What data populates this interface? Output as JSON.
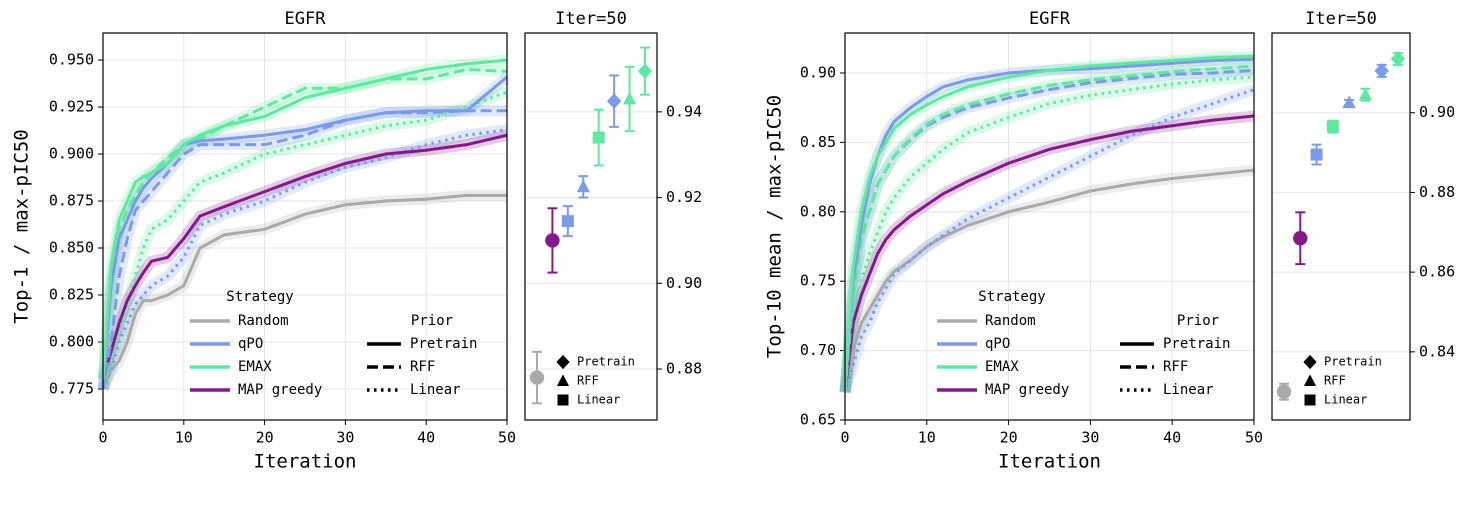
{
  "chart_data": [
    {
      "type": "line",
      "title": "EGFR",
      "x_label": "Iteration",
      "y_label": "Top-1 / max-pIC50",
      "x": [
        0,
        1,
        2,
        3,
        4,
        5,
        6,
        8,
        10,
        12,
        15,
        20,
        25,
        30,
        35,
        40,
        45,
        50
      ],
      "xlim": [
        0,
        50
      ],
      "xticks": [
        0,
        10,
        20,
        30,
        40,
        50
      ],
      "ylim": [
        0.7585,
        0.9644
      ],
      "yticks": [
        0.775,
        {
          "value": 0.8,
          "label": "0.800"
        },
        0.825,
        {
          "value": 0.85,
          "label": "0.850"
        },
        0.875,
        {
          "value": 0.9,
          "label": "0.900"
        },
        0.925,
        {
          "value": 0.95,
          "label": "0.950"
        }
      ],
      "grid": true,
      "legend": {
        "title": "Strategy",
        "entries": [
          {
            "label": "Random",
            "color": "#aaaaaa"
          },
          {
            "label": "qPO",
            "color": "#7b9ae8"
          },
          {
            "label": "EMAX",
            "color": "#5fe8a0"
          },
          {
            "label": "MAP greedy",
            "color": "#86198a"
          }
        ]
      },
      "legend2": {
        "title": "Prior",
        "entries": [
          {
            "label": "Pretrain",
            "dash": "solid"
          },
          {
            "label": "RFF",
            "dash": "dashed"
          },
          {
            "label": "Linear",
            "dash": "dotted"
          }
        ]
      },
      "series": [
        {
          "color": "#aaaaaa",
          "dash": "solid",
          "values": [
            0.775,
            0.785,
            0.79,
            0.8,
            0.815,
            0.822,
            0.822,
            0.825,
            0.83,
            0.85,
            0.857,
            0.86,
            0.868,
            0.873,
            0.875,
            0.876,
            0.878,
            0.878
          ]
        },
        {
          "color": "#7b9ae8",
          "dash": "dotted",
          "values": [
            0.775,
            0.785,
            0.8,
            0.81,
            0.82,
            0.825,
            0.83,
            0.835,
            0.845,
            0.862,
            0.868,
            0.875,
            0.885,
            0.893,
            0.898,
            0.905,
            0.91,
            0.913
          ]
        },
        {
          "color": "#5fe8a0",
          "dash": "dotted",
          "values": [
            0.775,
            0.79,
            0.805,
            0.82,
            0.835,
            0.85,
            0.86,
            0.865,
            0.875,
            0.885,
            0.89,
            0.9,
            0.905,
            0.91,
            0.915,
            0.918,
            0.925,
            0.933
          ]
        },
        {
          "color": "#86198a",
          "dash": "solid",
          "values": [
            0.78,
            0.795,
            0.81,
            0.822,
            0.83,
            0.837,
            0.843,
            0.845,
            0.855,
            0.867,
            0.872,
            0.88,
            0.888,
            0.895,
            0.9,
            0.902,
            0.905,
            0.91
          ]
        },
        {
          "color": "#7b9ae8",
          "dash": "dashed",
          "values": [
            0.775,
            0.8,
            0.835,
            0.855,
            0.87,
            0.875,
            0.88,
            0.89,
            0.9,
            0.905,
            0.905,
            0.905,
            0.91,
            0.918,
            0.922,
            0.922,
            0.923,
            0.923
          ]
        },
        {
          "color": "#5fe8a0",
          "dash": "dashed",
          "values": [
            0.78,
            0.83,
            0.86,
            0.87,
            0.878,
            0.885,
            0.89,
            0.898,
            0.905,
            0.908,
            0.915,
            0.925,
            0.935,
            0.935,
            0.94,
            0.94,
            0.945,
            0.944
          ]
        },
        {
          "color": "#7b9ae8",
          "dash": "solid",
          "values": [
            0.775,
            0.83,
            0.855,
            0.865,
            0.875,
            0.882,
            0.887,
            0.895,
            0.905,
            0.907,
            0.908,
            0.91,
            0.913,
            0.918,
            0.922,
            0.923,
            0.923,
            0.941
          ]
        },
        {
          "color": "#5fe8a0",
          "dash": "solid",
          "values": [
            0.78,
            0.84,
            0.865,
            0.875,
            0.885,
            0.888,
            0.89,
            0.895,
            0.905,
            0.91,
            0.915,
            0.92,
            0.93,
            0.935,
            0.94,
            0.945,
            0.948,
            0.95
          ]
        }
      ]
    },
    {
      "type": "errorbar",
      "title": "Iter=50",
      "ylim": [
        0.8681,
        0.9584
      ],
      "yticks": [
        0.88,
        {
          "value": 0.9,
          "label": "0.90"
        },
        0.92,
        0.94
      ],
      "grid": true,
      "points": [
        {
          "color": "#aaaaaa",
          "marker": "circle",
          "value": 0.878,
          "error": 0.006
        },
        {
          "color": "#86198a",
          "marker": "circle",
          "value": 0.91,
          "error": 0.0075
        },
        {
          "color": "#7b9ae8",
          "marker": "square",
          "value": 0.9145,
          "error": 0.0035
        },
        {
          "color": "#7b9ae8",
          "marker": "triangle",
          "value": 0.9225,
          "error": 0.0025
        },
        {
          "color": "#5fe8a0",
          "marker": "square",
          "value": 0.934,
          "error": 0.0065
        },
        {
          "color": "#7b9ae8",
          "marker": "diamond",
          "value": 0.9425,
          "error": 0.006
        },
        {
          "color": "#5fe8a0",
          "marker": "triangle",
          "value": 0.943,
          "error": 0.0075
        },
        {
          "color": "#5fe8a0",
          "marker": "diamond",
          "value": 0.9495,
          "error": 0.0055
        }
      ],
      "legend": {
        "entries": [
          {
            "label": "Pretrain",
            "marker": "diamond"
          },
          {
            "label": "RFF",
            "marker": "triangle"
          },
          {
            "label": "Linear",
            "marker": "square"
          }
        ]
      }
    },
    {
      "type": "line",
      "title": "EGFR",
      "x_label": "Iteration",
      "y_label": "Top-10 mean / max-pIC50",
      "x": [
        0,
        1,
        2,
        3,
        4,
        5,
        6,
        8,
        10,
        12,
        15,
        20,
        25,
        30,
        35,
        40,
        45,
        50
      ],
      "xlim": [
        0,
        50
      ],
      "xticks": [
        0,
        10,
        20,
        30,
        40,
        50
      ],
      "ylim": [
        0.65,
        0.9288
      ],
      "yticks": [
        0.65,
        {
          "value": 0.7,
          "label": "0.70"
        },
        0.75,
        {
          "value": 0.8,
          "label": "0.80"
        },
        0.85,
        {
          "value": 0.9,
          "label": "0.90"
        }
      ],
      "grid": true,
      "legend": {
        "title": "Strategy",
        "entries": [
          {
            "label": "Random",
            "color": "#aaaaaa"
          },
          {
            "label": "qPO",
            "color": "#7b9ae8"
          },
          {
            "label": "EMAX",
            "color": "#5fe8a0"
          },
          {
            "label": "MAP greedy",
            "color": "#86198a"
          }
        ]
      },
      "legend2": {
        "title": "Prior",
        "entries": [
          {
            "label": "Pretrain",
            "dash": "solid"
          },
          {
            "label": "RFF",
            "dash": "dashed"
          },
          {
            "label": "Linear",
            "dash": "dotted"
          }
        ]
      },
      "series": [
        {
          "color": "#aaaaaa",
          "dash": "solid",
          "values": [
            0.67,
            0.7,
            0.72,
            0.73,
            0.74,
            0.75,
            0.757,
            0.765,
            0.775,
            0.782,
            0.79,
            0.8,
            0.807,
            0.815,
            0.82,
            0.824,
            0.827,
            0.83
          ]
        },
        {
          "color": "#7b9ae8",
          "dash": "dotted",
          "values": [
            0.67,
            0.69,
            0.71,
            0.72,
            0.735,
            0.745,
            0.755,
            0.765,
            0.775,
            0.783,
            0.795,
            0.81,
            0.825,
            0.84,
            0.855,
            0.868,
            0.878,
            0.888
          ]
        },
        {
          "color": "#5fe8a0",
          "dash": "dotted",
          "values": [
            0.67,
            0.72,
            0.75,
            0.77,
            0.785,
            0.8,
            0.81,
            0.825,
            0.835,
            0.845,
            0.857,
            0.868,
            0.878,
            0.884,
            0.888,
            0.892,
            0.895,
            0.897
          ]
        },
        {
          "color": "#86198a",
          "dash": "solid",
          "values": [
            0.67,
            0.72,
            0.74,
            0.755,
            0.77,
            0.78,
            0.787,
            0.797,
            0.805,
            0.813,
            0.822,
            0.835,
            0.845,
            0.852,
            0.858,
            0.862,
            0.866,
            0.869
          ]
        },
        {
          "color": "#7b9ae8",
          "dash": "dashed",
          "values": [
            0.67,
            0.74,
            0.78,
            0.8,
            0.82,
            0.83,
            0.84,
            0.852,
            0.862,
            0.868,
            0.875,
            0.882,
            0.888,
            0.893,
            0.896,
            0.899,
            0.9,
            0.902
          ]
        },
        {
          "color": "#5fe8a0",
          "dash": "dashed",
          "values": [
            0.67,
            0.74,
            0.78,
            0.8,
            0.82,
            0.83,
            0.84,
            0.853,
            0.863,
            0.87,
            0.877,
            0.885,
            0.891,
            0.895,
            0.898,
            0.901,
            0.903,
            0.905
          ]
        },
        {
          "color": "#7b9ae8",
          "dash": "solid",
          "values": [
            0.67,
            0.75,
            0.79,
            0.82,
            0.84,
            0.855,
            0.865,
            0.875,
            0.883,
            0.89,
            0.895,
            0.9,
            0.902,
            0.903,
            0.905,
            0.907,
            0.909,
            0.91
          ]
        },
        {
          "color": "#5fe8a0",
          "dash": "solid",
          "values": [
            0.67,
            0.76,
            0.8,
            0.825,
            0.84,
            0.85,
            0.86,
            0.87,
            0.877,
            0.883,
            0.89,
            0.897,
            0.902,
            0.905,
            0.907,
            0.909,
            0.911,
            0.912
          ]
        }
      ]
    },
    {
      "type": "errorbar",
      "title": "Iter=50",
      "ylim": [
        0.8229,
        0.92
      ],
      "yticks": [
        0.84,
        0.86,
        0.88,
        {
          "value": 0.9,
          "label": "0.90"
        }
      ],
      "grid": true,
      "points": [
        {
          "color": "#aaaaaa",
          "marker": "circle",
          "value": 0.83,
          "error": 0.002
        },
        {
          "color": "#86198a",
          "marker": "circle",
          "value": 0.8685,
          "error": 0.0065
        },
        {
          "color": "#7b9ae8",
          "marker": "square",
          "value": 0.8895,
          "error": 0.0025
        },
        {
          "color": "#5fe8a0",
          "marker": "square",
          "value": 0.8965,
          "error": 0.0015
        },
        {
          "color": "#7b9ae8",
          "marker": "triangle",
          "value": 0.9025,
          "error": 0.0007
        },
        {
          "color": "#5fe8a0",
          "marker": "triangle",
          "value": 0.9045,
          "error": 0.0015
        },
        {
          "color": "#7b9ae8",
          "marker": "diamond",
          "value": 0.9105,
          "error": 0.0015
        },
        {
          "color": "#5fe8a0",
          "marker": "diamond",
          "value": 0.9135,
          "error": 0.0015
        }
      ],
      "legend": {
        "entries": [
          {
            "label": "Pretrain",
            "marker": "diamond"
          },
          {
            "label": "RFF",
            "marker": "triangle"
          },
          {
            "label": "Linear",
            "marker": "square"
          }
        ]
      }
    }
  ]
}
